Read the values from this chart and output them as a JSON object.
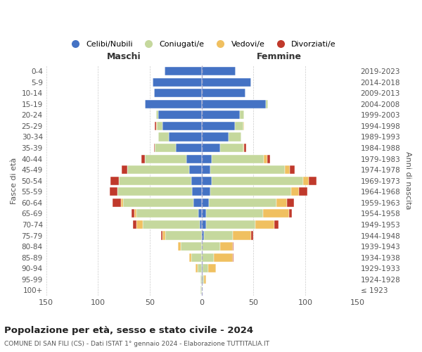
{
  "age_groups": [
    "100+",
    "95-99",
    "90-94",
    "85-89",
    "80-84",
    "75-79",
    "70-74",
    "65-69",
    "60-64",
    "55-59",
    "50-54",
    "45-49",
    "40-44",
    "35-39",
    "30-34",
    "25-29",
    "20-24",
    "15-19",
    "10-14",
    "5-9",
    "0-4"
  ],
  "birth_years": [
    "≤ 1923",
    "1924-1928",
    "1929-1933",
    "1934-1938",
    "1939-1943",
    "1944-1948",
    "1949-1953",
    "1954-1958",
    "1959-1963",
    "1964-1968",
    "1969-1973",
    "1974-1978",
    "1979-1983",
    "1984-1988",
    "1989-1993",
    "1994-1998",
    "1999-2003",
    "2004-2008",
    "2009-2013",
    "2014-2018",
    "2019-2023"
  ],
  "male": {
    "celibe": [
      0,
      0,
      0,
      0,
      0,
      0,
      2,
      3,
      8,
      9,
      10,
      12,
      15,
      25,
      32,
      38,
      42,
      55,
      46,
      47,
      36
    ],
    "coniugato": [
      1,
      1,
      4,
      10,
      20,
      35,
      55,
      60,
      68,
      72,
      70,
      60,
      40,
      20,
      10,
      5,
      2,
      0,
      0,
      0,
      0
    ],
    "vedovo": [
      0,
      0,
      2,
      2,
      3,
      3,
      6,
      2,
      2,
      0,
      0,
      0,
      0,
      0,
      0,
      1,
      0,
      0,
      0,
      0,
      0
    ],
    "divorziato": [
      0,
      0,
      0,
      0,
      0,
      1,
      3,
      3,
      8,
      8,
      8,
      5,
      3,
      1,
      0,
      1,
      0,
      0,
      0,
      0,
      0
    ]
  },
  "female": {
    "nubile": [
      0,
      1,
      1,
      0,
      0,
      2,
      4,
      4,
      7,
      8,
      10,
      8,
      10,
      18,
      26,
      32,
      37,
      62,
      42,
      48,
      33
    ],
    "coniugata": [
      0,
      1,
      5,
      12,
      18,
      28,
      48,
      55,
      65,
      78,
      88,
      72,
      50,
      22,
      12,
      8,
      4,
      2,
      0,
      0,
      0
    ],
    "vedova": [
      0,
      2,
      8,
      18,
      12,
      18,
      18,
      25,
      10,
      8,
      5,
      5,
      3,
      1,
      0,
      1,
      0,
      0,
      0,
      0,
      0
    ],
    "divorziata": [
      0,
      0,
      0,
      1,
      1,
      2,
      4,
      3,
      7,
      8,
      8,
      5,
      3,
      2,
      0,
      0,
      0,
      0,
      0,
      0,
      0
    ]
  },
  "colors": {
    "celibe": "#4472c4",
    "coniugato": "#c5d89d",
    "vedovo": "#f0c060",
    "divorziato": "#c0392b"
  },
  "xlim": 150,
  "title_main": "Popolazione per età, sesso e stato civile - 2024",
  "title_sub": "COMUNE DI SAN FILI (CS) - Dati ISTAT 1° gennaio 2024 - Elaborazione TUTTITALIA.IT",
  "ylabel_left": "Fasce di età",
  "ylabel_right": "Anni di nascita",
  "xlabel_left": "Maschi",
  "xlabel_right": "Femmine",
  "legend_labels": [
    "Celibi/Nubili",
    "Coniugati/e",
    "Vedovi/e",
    "Divorziati/e"
  ]
}
